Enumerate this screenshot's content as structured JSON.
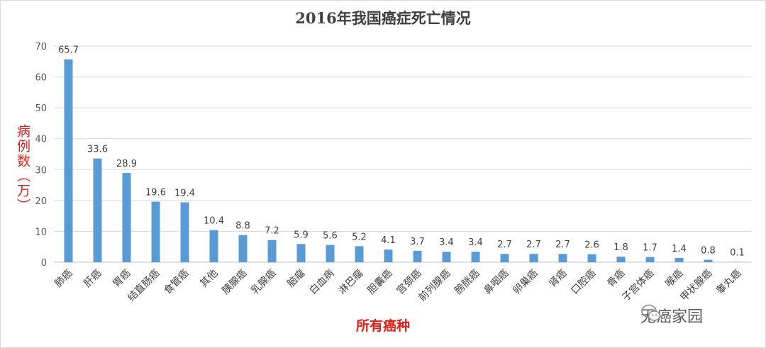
{
  "chart_data": {
    "type": "bar",
    "title": "2016年我国癌症死亡情况",
    "xlabel": "所有癌种",
    "ylabel": "病例数（万）",
    "ylim": [
      0,
      70
    ],
    "yticks": [
      0,
      10,
      20,
      30,
      40,
      50,
      60,
      70
    ],
    "grid": true,
    "legend": "none",
    "bar_color": "#5b9bd5",
    "categories": [
      "肺癌",
      "肝癌",
      "胃癌",
      "结直肠癌",
      "食管癌",
      "其他",
      "胰腺癌",
      "乳腺癌",
      "脑瘤",
      "白血病",
      "淋巴瘤",
      "胆囊癌",
      "宫颈癌",
      "前列腺癌",
      "膀胱癌",
      "鼻咽癌",
      "卵巢癌",
      "肾癌",
      "口腔癌",
      "骨癌",
      "子宫体癌",
      "喉癌",
      "甲状腺癌",
      "睾丸癌"
    ],
    "values": [
      65.7,
      33.6,
      28.9,
      19.6,
      19.4,
      10.4,
      8.8,
      7.2,
      5.9,
      5.6,
      5.2,
      4.1,
      3.7,
      3.4,
      3.4,
      2.7,
      2.7,
      2.7,
      2.6,
      1.8,
      1.7,
      1.4,
      0.8,
      0.1
    ],
    "data_labels": [
      "65.7",
      "33.6",
      "28.9",
      "19.6",
      "19.4",
      "10.4",
      "8.8",
      "7.2",
      "5.9",
      "5.6",
      "5.2",
      "4.1",
      "3.7",
      "3.4",
      "3.4",
      "2.7",
      "2.7",
      "2.7",
      "2.6",
      "1.8",
      "1.7",
      "1.4",
      "0.8",
      "0.1"
    ]
  },
  "watermark": {
    "text": "无癌家园",
    "icon": "wechat-icon"
  }
}
